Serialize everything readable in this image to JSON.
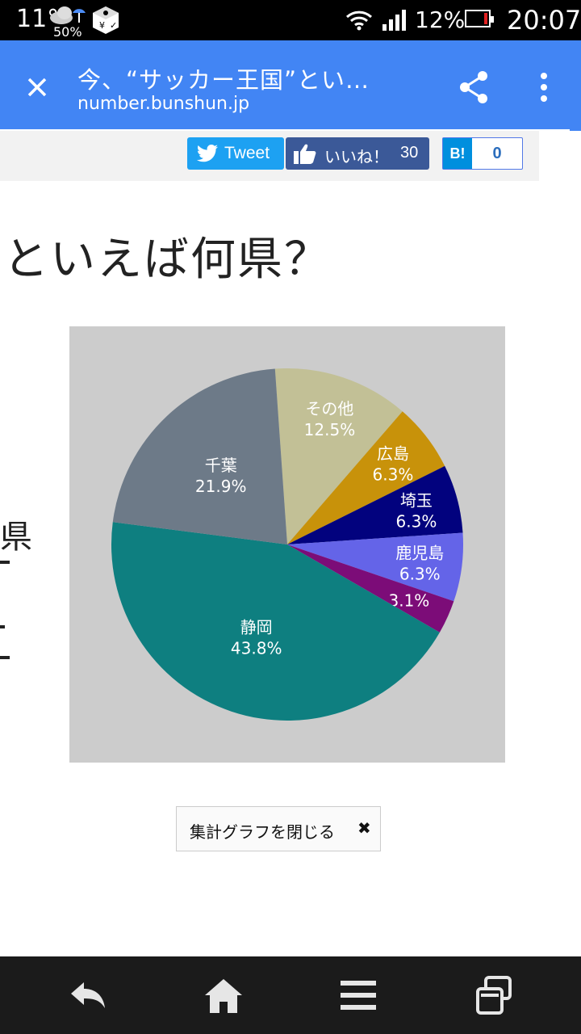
{
  "status_bar": {
    "temperature": "11°",
    "rain_chance": "50%",
    "battery": "12%",
    "time": "20:07",
    "icons": [
      "weather-cloud-umbrella-icon",
      "tool-app-icon",
      "wifi-icon",
      "signal-icon",
      "battery-icon"
    ]
  },
  "app_bar": {
    "title": "今、“サッカー王国”とい…",
    "url": "number.bunshun.jp",
    "color": "#4285f4"
  },
  "social": {
    "tweet_label": "Tweet",
    "like_label": "いいね！",
    "like_count": "30",
    "hatena_label": "B!",
    "hatena_count": "0"
  },
  "article": {
    "heading": "といえば何県？",
    "side_fragments": [
      "県",
      "ー",
      "ー"
    ]
  },
  "chart_data": {
    "type": "pie",
    "title": "",
    "slices": [
      {
        "label": "静岡",
        "value": 43.8,
        "display": "43.8%",
        "color": "#0e7f80"
      },
      {
        "label": "千葉",
        "value": 21.9,
        "display": "21.9%",
        "color": "#6d7a88"
      },
      {
        "label": "その他",
        "value": 12.5,
        "display": "12.5%",
        "color": "#c2c096"
      },
      {
        "label": "広島",
        "value": 6.3,
        "display": "6.3%",
        "color": "#c8920a"
      },
      {
        "label": "埼玉",
        "value": 6.3,
        "display": "6.3%",
        "color": "#02027e"
      },
      {
        "label": "鹿児島",
        "value": 6.3,
        "display": "6.3%",
        "color": "#6464e8"
      },
      {
        "label": "",
        "value": 3.1,
        "display": "3.1%",
        "color": "#7c0c78"
      }
    ],
    "background": "#cccccc"
  },
  "close_graph": {
    "label": "集計グラフを閉じる",
    "icon": "✖"
  },
  "nav_bar": {
    "icons": [
      "back-icon",
      "home-icon",
      "menu-icon",
      "windows-icon"
    ]
  }
}
